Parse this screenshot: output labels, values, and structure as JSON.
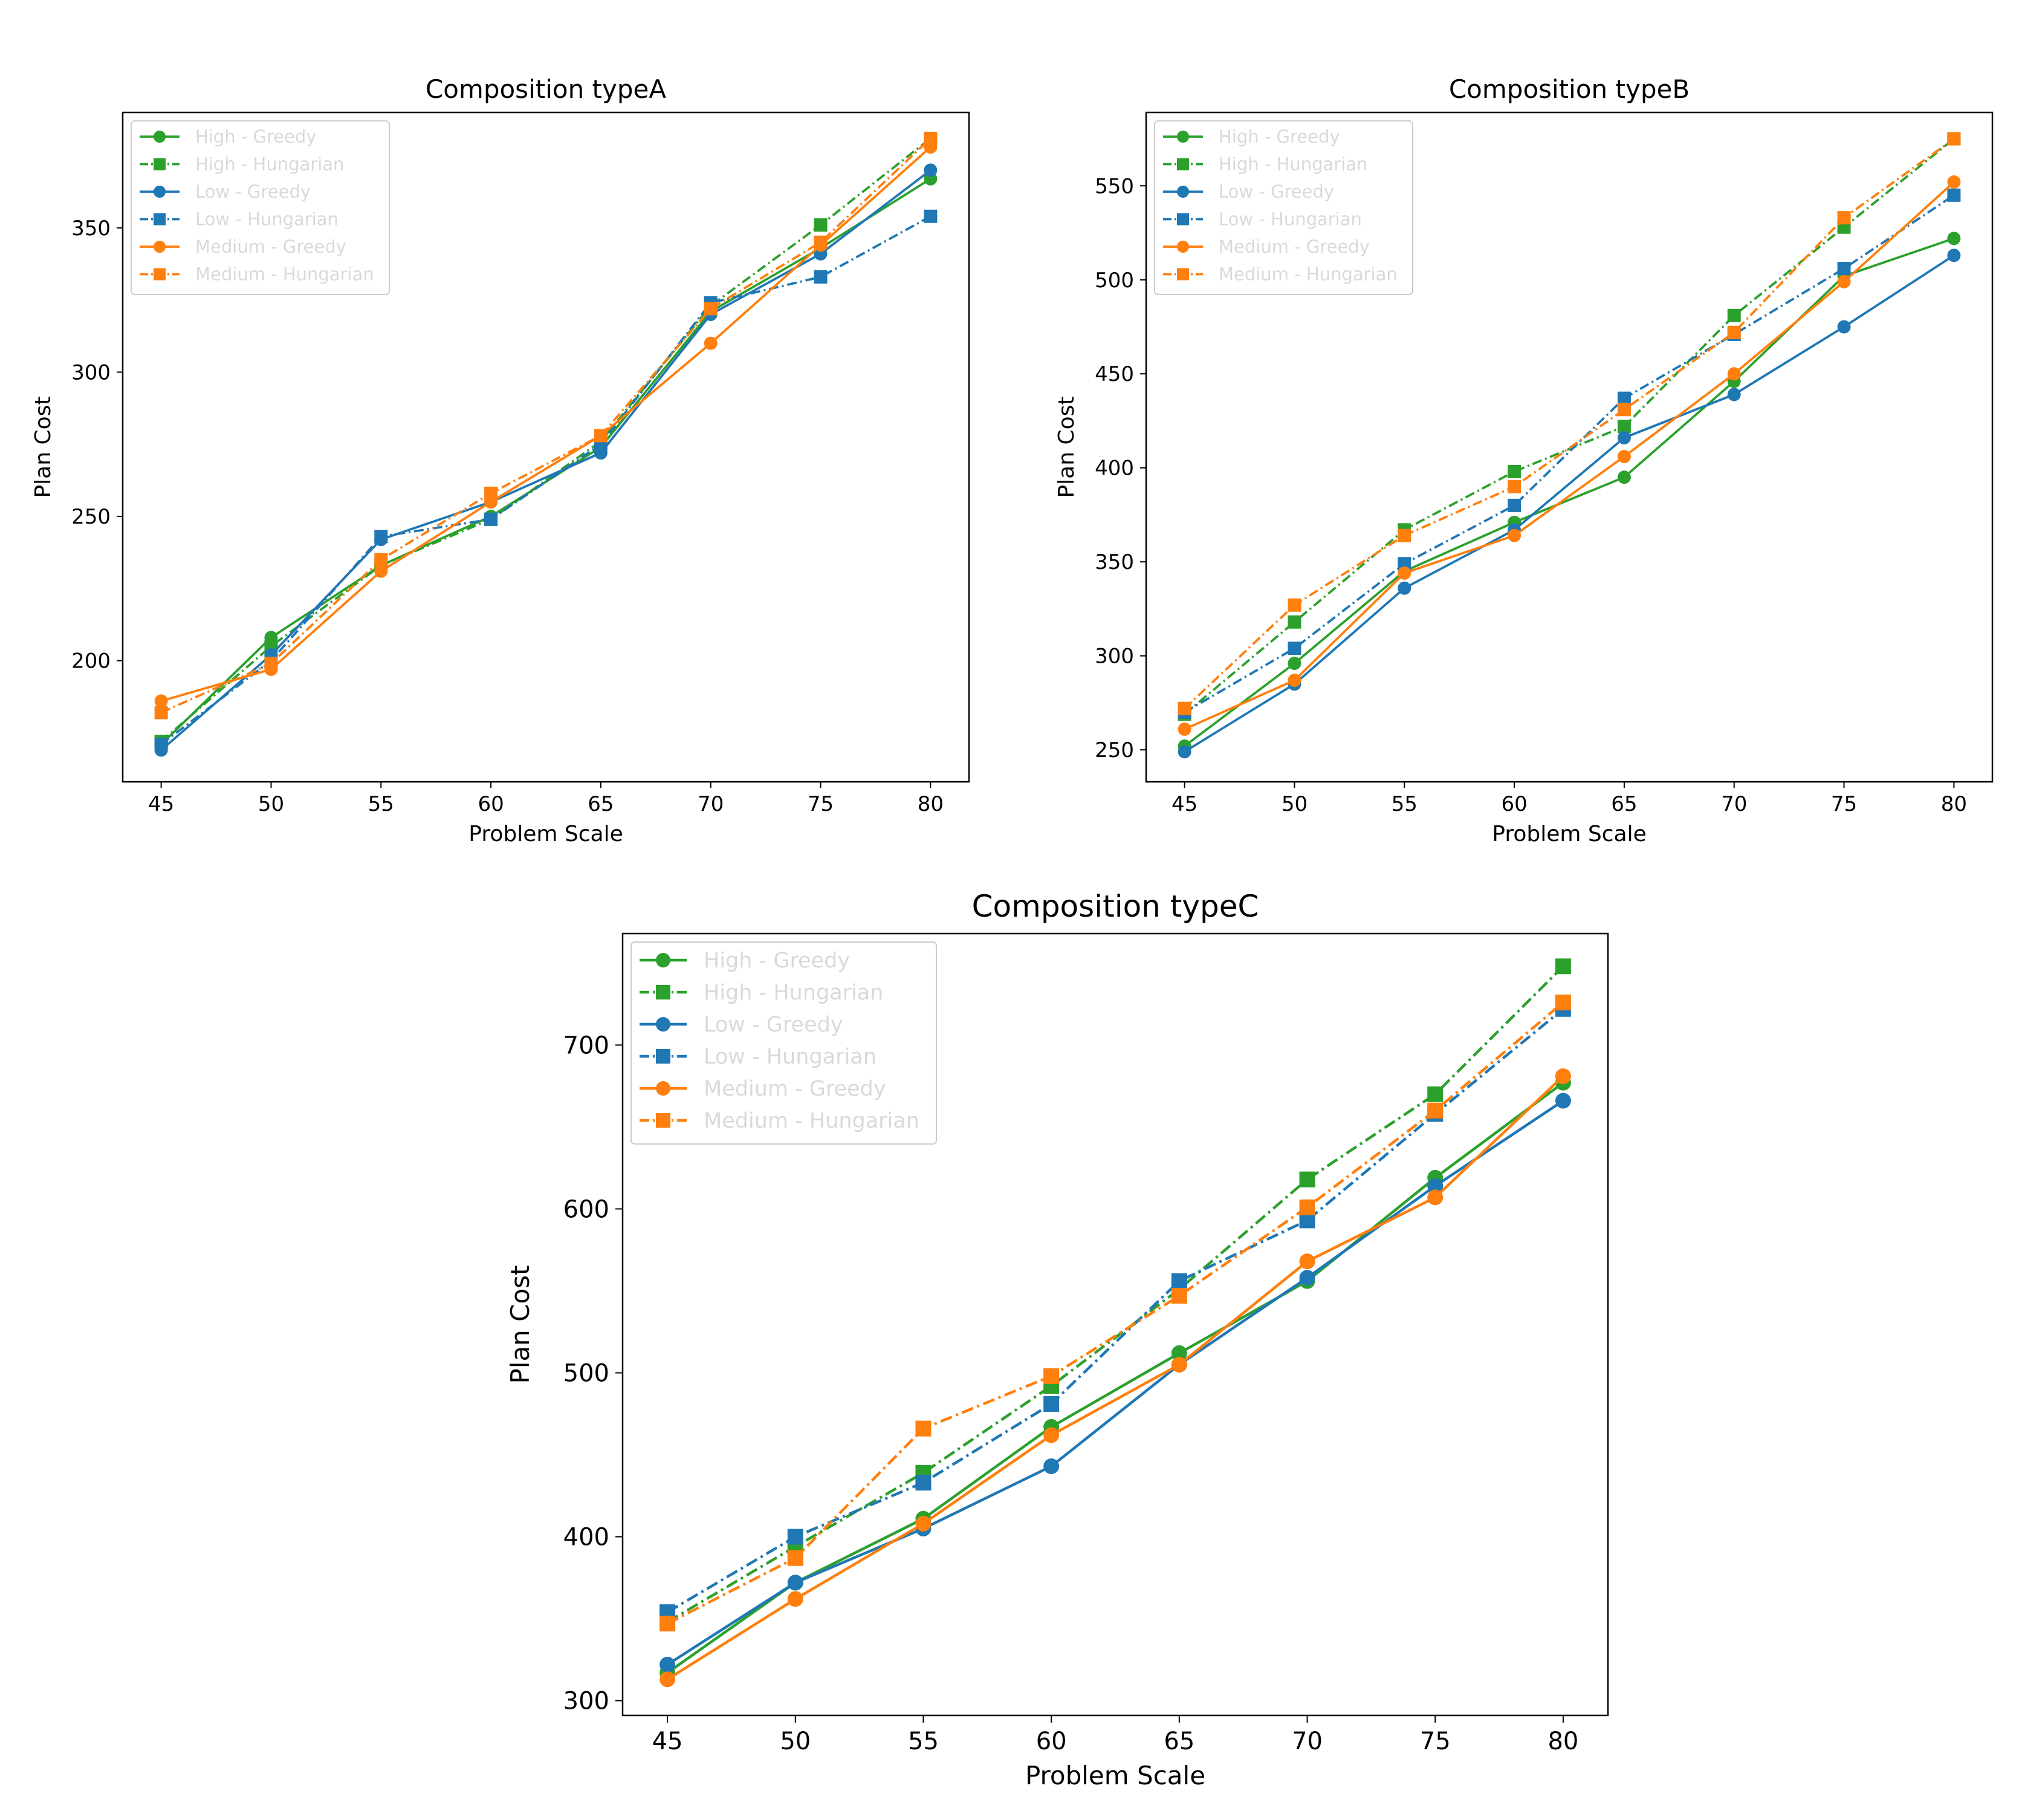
{
  "chart_data": [
    {
      "type": "line",
      "title": "Composition typeA",
      "xlabel": "Problem Scale",
      "ylabel": "Plan Cost",
      "x": [
        45,
        50,
        55,
        60,
        65,
        70,
        75,
        80
      ],
      "ylim": [
        158,
        390
      ],
      "yticks": [
        200,
        250,
        300,
        350
      ],
      "legend_position": "upper left",
      "series": [
        {
          "name": "High - Greedy",
          "color": "#2ca02c",
          "marker": "circle",
          "linestyle": "solid",
          "values": [
            171,
            208,
            233,
            250,
            274,
            321,
            343,
            367
          ]
        },
        {
          "name": "High - Hungarian",
          "color": "#2ca02c",
          "marker": "square",
          "linestyle": "dashdot",
          "values": [
            172,
            205,
            233,
            249,
            276,
            323,
            351,
            381
          ]
        },
        {
          "name": "Low - Greedy",
          "color": "#1f77b4",
          "marker": "circle",
          "linestyle": "solid",
          "values": [
            169,
            202,
            242,
            255,
            272,
            320,
            341,
            370
          ]
        },
        {
          "name": "Low - Hungarian",
          "color": "#1f77b4",
          "marker": "square",
          "linestyle": "dashdot",
          "values": [
            171,
            200,
            243,
            249,
            275,
            324,
            333,
            354
          ]
        },
        {
          "name": "Medium - Greedy",
          "color": "#ff7f0e",
          "marker": "circle",
          "linestyle": "solid",
          "values": [
            186,
            197,
            231,
            255,
            278,
            310,
            344,
            378
          ]
        },
        {
          "name": "Medium - Hungarian",
          "color": "#ff7f0e",
          "marker": "square",
          "linestyle": "dashdot",
          "values": [
            182,
            199,
            235,
            258,
            278,
            322,
            345,
            381
          ]
        }
      ]
    },
    {
      "type": "line",
      "title": "Composition typeB",
      "xlabel": "Problem Scale",
      "ylabel": "Plan Cost",
      "x": [
        45,
        50,
        55,
        60,
        65,
        70,
        75,
        80
      ],
      "ylim": [
        233,
        589
      ],
      "yticks": [
        250,
        300,
        350,
        400,
        450,
        500,
        550
      ],
      "legend_position": "upper left",
      "series": [
        {
          "name": "High - Greedy",
          "color": "#2ca02c",
          "marker": "circle",
          "linestyle": "solid",
          "values": [
            252,
            296,
            345,
            371,
            395,
            446,
            502,
            522
          ]
        },
        {
          "name": "High - Hungarian",
          "color": "#2ca02c",
          "marker": "square",
          "linestyle": "dashdot",
          "values": [
            269,
            318,
            367,
            398,
            422,
            481,
            528,
            575
          ]
        },
        {
          "name": "Low - Greedy",
          "color": "#1f77b4",
          "marker": "circle",
          "linestyle": "solid",
          "values": [
            249,
            285,
            336,
            367,
            416,
            439,
            475,
            513
          ]
        },
        {
          "name": "Low - Hungarian",
          "color": "#1f77b4",
          "marker": "square",
          "linestyle": "dashdot",
          "values": [
            270,
            304,
            349,
            380,
            437,
            471,
            506,
            545
          ]
        },
        {
          "name": "Medium - Greedy",
          "color": "#ff7f0e",
          "marker": "circle",
          "linestyle": "solid",
          "values": [
            261,
            287,
            344,
            364,
            406,
            450,
            499,
            552
          ]
        },
        {
          "name": "Medium - Hungarian",
          "color": "#ff7f0e",
          "marker": "square",
          "linestyle": "dashdot",
          "values": [
            272,
            327,
            364,
            390,
            431,
            472,
            533,
            575
          ]
        }
      ]
    },
    {
      "type": "line",
      "title": "Composition typeC",
      "xlabel": "Problem Scale",
      "ylabel": "Plan Cost",
      "x": [
        45,
        50,
        55,
        60,
        65,
        70,
        75,
        80
      ],
      "ylim": [
        291,
        768
      ],
      "yticks": [
        300,
        400,
        500,
        600,
        700
      ],
      "legend_position": "upper left",
      "series": [
        {
          "name": "High - Greedy",
          "color": "#2ca02c",
          "marker": "circle",
          "linestyle": "solid",
          "values": [
            317,
            372,
            411,
            467,
            512,
            556,
            619,
            677
          ]
        },
        {
          "name": "High - Hungarian",
          "color": "#2ca02c",
          "marker": "square",
          "linestyle": "dashdot",
          "values": [
            348,
            394,
            439,
            492,
            551,
            618,
            670,
            748
          ]
        },
        {
          "name": "Low - Greedy",
          "color": "#1f77b4",
          "marker": "circle",
          "linestyle": "solid",
          "values": [
            322,
            372,
            405,
            443,
            505,
            558,
            614,
            666
          ]
        },
        {
          "name": "Low - Hungarian",
          "color": "#1f77b4",
          "marker": "square",
          "linestyle": "dashdot",
          "values": [
            354,
            400,
            433,
            481,
            556,
            593,
            658,
            722
          ]
        },
        {
          "name": "Medium - Greedy",
          "color": "#ff7f0e",
          "marker": "circle",
          "linestyle": "solid",
          "values": [
            313,
            362,
            408,
            462,
            505,
            568,
            607,
            681
          ]
        },
        {
          "name": "Medium - Hungarian",
          "color": "#ff7f0e",
          "marker": "square",
          "linestyle": "dashdot",
          "values": [
            347,
            387,
            466,
            498,
            547,
            601,
            660,
            726
          ]
        }
      ]
    }
  ]
}
